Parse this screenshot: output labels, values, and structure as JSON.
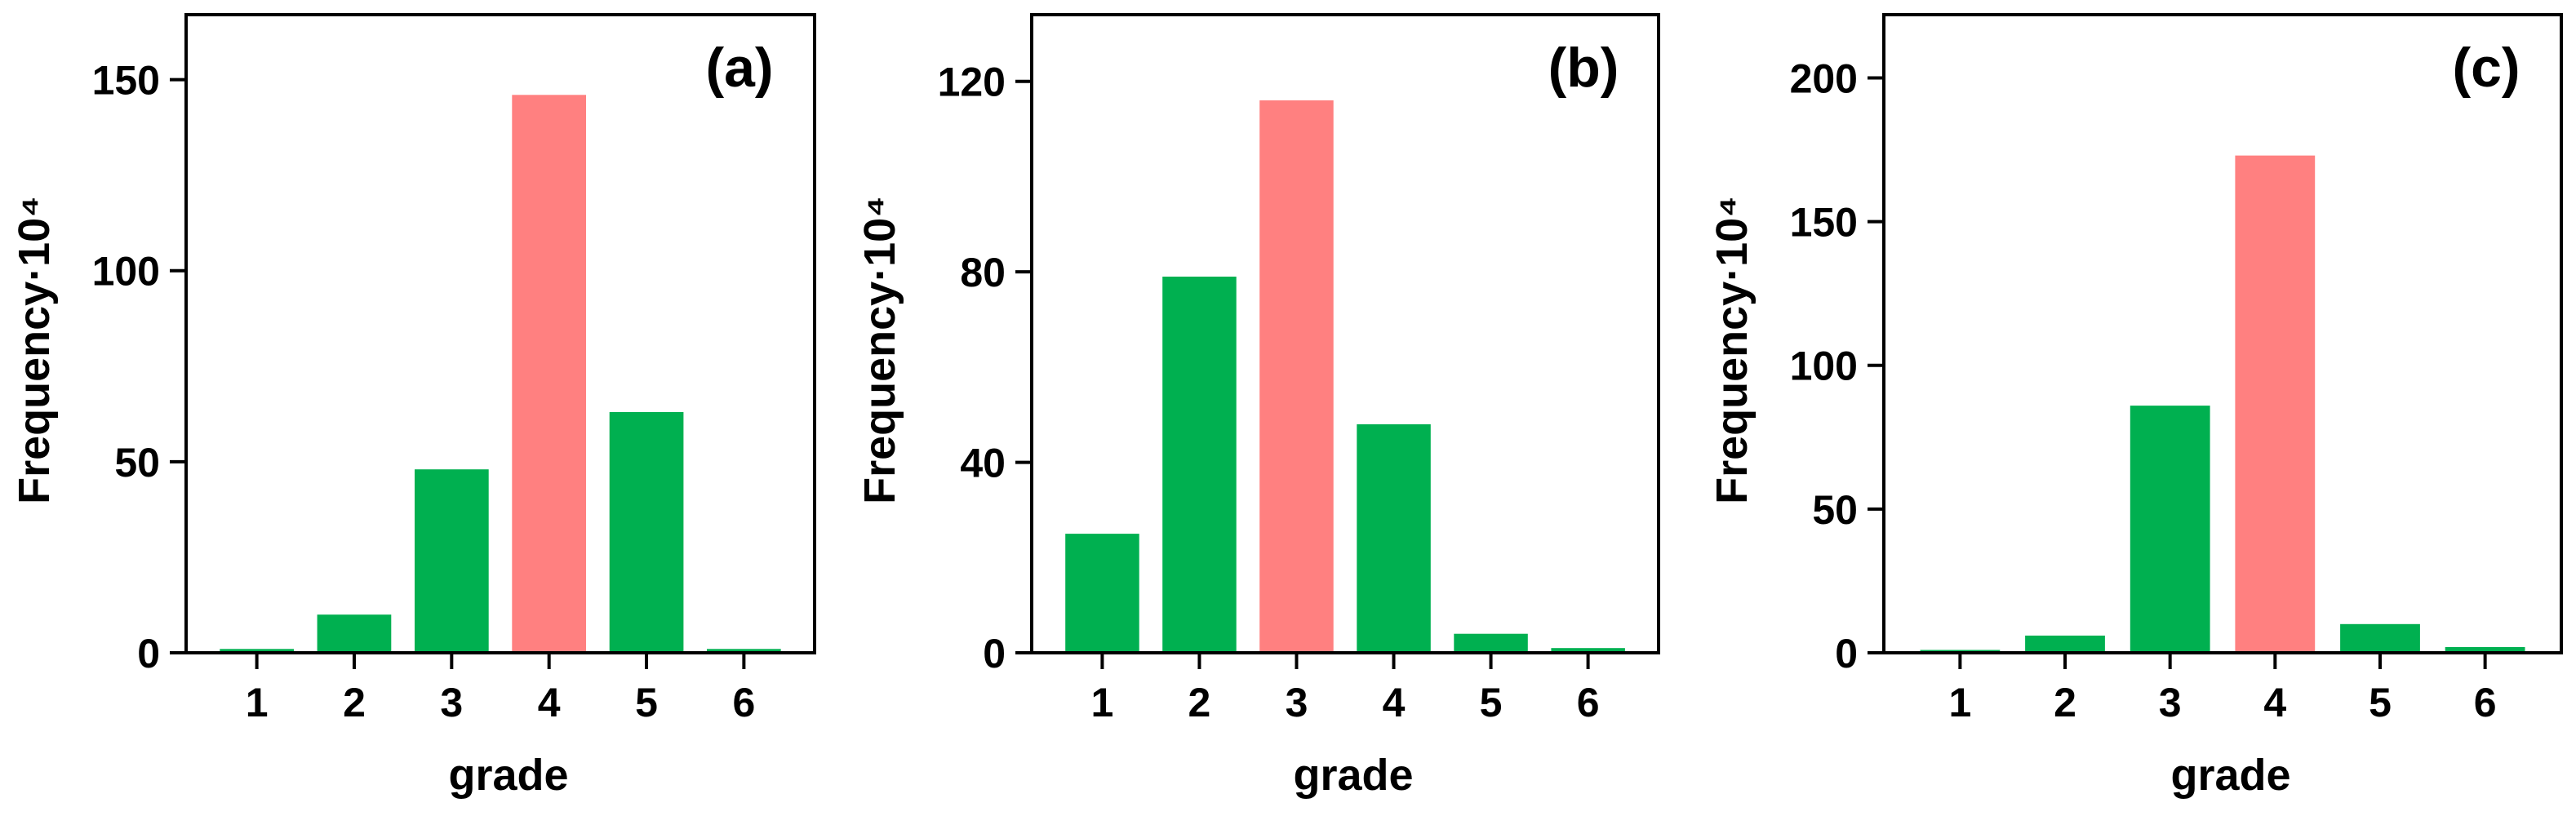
{
  "figure": {
    "background": "#ffffff",
    "bar_default_color": "#00B050",
    "bar_highlight_color": "#FF8080"
  },
  "chart_data": [
    {
      "type": "bar",
      "panel_label": "(a)",
      "xlabel": "grade",
      "ylabel": "Frequency·10⁴",
      "categories": [
        "1",
        "2",
        "3",
        "4",
        "5",
        "6"
      ],
      "values": [
        1,
        10,
        48,
        146,
        63,
        1
      ],
      "highlight_index": 3,
      "ylim": [
        0,
        167
      ],
      "yticks": [
        0,
        50,
        100,
        150
      ],
      "grid": false,
      "legend": false
    },
    {
      "type": "bar",
      "panel_label": "(b)",
      "xlabel": "grade",
      "ylabel": "Frequency·10⁴",
      "categories": [
        "1",
        "2",
        "3",
        "4",
        "5",
        "6"
      ],
      "values": [
        25,
        79,
        116,
        48,
        4,
        1
      ],
      "highlight_index": 2,
      "ylim": [
        0,
        134
      ],
      "yticks": [
        0,
        40,
        80,
        120
      ],
      "grid": false,
      "legend": false
    },
    {
      "type": "bar",
      "panel_label": "(c)",
      "xlabel": "grade",
      "ylabel": "Frequency·10⁴",
      "categories": [
        "1",
        "2",
        "3",
        "4",
        "5",
        "6"
      ],
      "values": [
        1,
        6,
        86,
        173,
        10,
        2
      ],
      "highlight_index": 3,
      "ylim": [
        0,
        222
      ],
      "yticks": [
        0,
        50,
        100,
        150,
        200
      ],
      "grid": false,
      "legend": false
    }
  ]
}
